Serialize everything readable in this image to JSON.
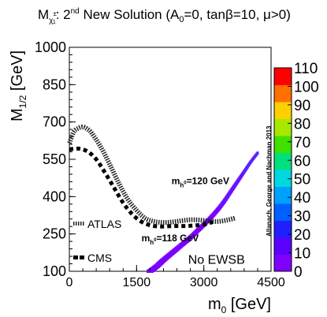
{
  "chart_data": {
    "type": "scatter",
    "title": {
      "prefix": "M",
      "sub": "χ",
      "subsup": "±",
      "subsub": "1",
      "mid": ": 2",
      "sup": "nd",
      "rest": " New Solution (A",
      "a0sub": "0",
      "tail": "=0, tanβ=10, μ>0)"
    },
    "xlabel": {
      "main": "m",
      "sub": "0",
      "unit": " [GeV]"
    },
    "ylabel": {
      "main": "M",
      "sub": "1/2",
      "unit": " [GeV]"
    },
    "xlim": [
      0,
      4500
    ],
    "ylim": [
      100,
      1000
    ],
    "x_ticks": [
      {
        "value": 0,
        "label": "0"
      },
      {
        "value": 1500,
        "label": "1500"
      },
      {
        "value": 3000,
        "label": "3000"
      },
      {
        "value": 4500,
        "label": "4500"
      }
    ],
    "y_ticks": [
      {
        "value": 100,
        "label": "100"
      },
      {
        "value": 250,
        "label": "250"
      },
      {
        "value": 400,
        "label": "400"
      },
      {
        "value": 550,
        "label": "550"
      },
      {
        "value": 700,
        "label": "700"
      },
      {
        "value": 850,
        "label": "850"
      },
      {
        "value": 1000,
        "label": "1000"
      }
    ],
    "colorbar": {
      "range": [
        0,
        110
      ],
      "labels": [
        "0",
        "10",
        "20",
        "30",
        "40",
        "50",
        "60",
        "70",
        "80",
        "90",
        "100",
        "110"
      ],
      "colors": [
        "#8000ff",
        "#5a00ff",
        "#2020ff",
        "#0060ff",
        "#00a0ff",
        "#00d8e0",
        "#00e080",
        "#40e000",
        "#a8e800",
        "#ffd000",
        "#ff7000",
        "#ff0000"
      ]
    },
    "series": [
      {
        "name": "ATLAS",
        "style": "hatched",
        "x": [
          0,
          100,
          200,
          300,
          400,
          500,
          700,
          900,
          1100,
          1300,
          1500,
          1700,
          1900,
          2100,
          2300,
          2500,
          2700,
          2900,
          3100,
          3300,
          3500,
          3700
        ],
        "y": [
          615,
          660,
          675,
          680,
          672,
          655,
          600,
          530,
          455,
          390,
          345,
          312,
          300,
          296,
          298,
          303,
          307,
          306,
          302,
          300,
          305,
          314
        ]
      },
      {
        "name": "CMS",
        "style": "dashed",
        "x": [
          0,
          200,
          400,
          600,
          800,
          1000,
          1200,
          1400,
          1600,
          1800,
          2000,
          2200,
          2400,
          2600,
          2800,
          3000,
          3200
        ],
        "y": [
          590,
          593,
          582,
          550,
          495,
          435,
          375,
          330,
          300,
          285,
          280,
          281,
          282,
          282,
          284,
          288,
          298
        ]
      },
      {
        "name": "No EWSB boundary",
        "style": "scatter-band",
        "x": [
          1800,
          1950,
          2100,
          2300,
          2500,
          2700,
          2900,
          3100,
          3300,
          3450,
          3600,
          3750,
          3900,
          4050,
          4200
        ],
        "y": [
          100,
          120,
          145,
          175,
          205,
          235,
          270,
          305,
          345,
          380,
          420,
          460,
          500,
          540,
          575
        ]
      }
    ],
    "annotations": [
      {
        "key": "mh120",
        "main": "m",
        "sub": "h",
        "subsup": "0",
        "rest": "=120 GeV",
        "x": 2280,
        "y": 450
      },
      {
        "key": "mh118",
        "main": "m",
        "sub": "h",
        "subsup": "0",
        "rest": "=118 GeV",
        "x": 1610,
        "y": 220
      },
      {
        "key": "noewsb",
        "text": "No EWSB",
        "x": 2650,
        "y": 130
      },
      {
        "key": "credit",
        "text": "Allanach, George and Nachman 2013"
      }
    ],
    "legend": {
      "placement": "bottom-left",
      "entries": [
        {
          "label": "ATLAS",
          "style": "hatched"
        },
        {
          "label": "CMS",
          "style": "dashed"
        }
      ]
    }
  }
}
